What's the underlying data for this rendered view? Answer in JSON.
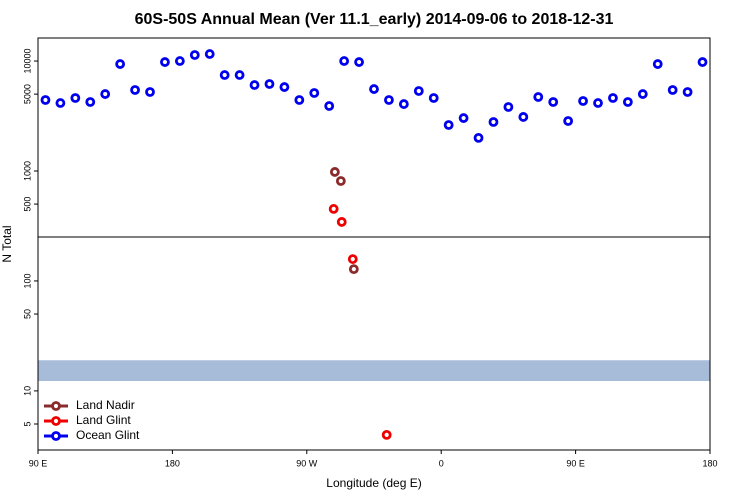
{
  "chart_data": {
    "type": "scatter",
    "title": "60S-50S Annual Mean (Ver 11.1_early)   2014-09-06 to 2018-12-31",
    "xlabel": "Longitude (deg E)",
    "ylabel": "N Total",
    "xlim": [
      90,
      540
    ],
    "ylim": [
      2.9,
      16200
    ],
    "log_y": true,
    "xticks": [
      {
        "value": 90,
        "label": "90 E"
      },
      {
        "value": 180,
        "label": "180"
      },
      {
        "value": 270,
        "label": "90 W"
      },
      {
        "value": 360,
        "label": "0"
      },
      {
        "value": 450,
        "label": "90 E"
      },
      {
        "value": 540,
        "label": "180"
      }
    ],
    "yticks": [
      5,
      10,
      50,
      100,
      500,
      1000,
      5000,
      10000
    ],
    "hline": 251,
    "bands": [
      {
        "range": [
          12.3,
          19
        ],
        "color": "#a7bcd9"
      }
    ],
    "legend": "bottom-left",
    "series": [
      {
        "name": "Land Nadir",
        "color": "#8b2a2a",
        "x": [
          288.8,
          292.8,
          301.5
        ],
        "values": [
          980,
          811,
          128
        ]
      },
      {
        "name": "Land Glint",
        "color": "#ee0000",
        "x": [
          288,
          293.4,
          300.8,
          323.5
        ],
        "values": [
          452,
          344,
          158,
          3.98
        ]
      },
      {
        "name": "Ocean Glint",
        "color": "#0000ee",
        "x": [
          95,
          105,
          115,
          125,
          135,
          145,
          155,
          165,
          175,
          185,
          195,
          205,
          215,
          225,
          235,
          245,
          255,
          265,
          275,
          285,
          295,
          305,
          315,
          325,
          335,
          345,
          355,
          365,
          375,
          385,
          395,
          405,
          415,
          425,
          435,
          445,
          455,
          465,
          475,
          485,
          495,
          505,
          515,
          525,
          535
        ],
        "values": [
          4420,
          4150,
          4610,
          4240,
          5010,
          9390,
          5450,
          5230,
          9790,
          10000,
          11350,
          11580,
          7460,
          7460,
          6050,
          6180,
          5800,
          4420,
          5120,
          3900,
          10000,
          9790,
          5560,
          4420,
          4060,
          5340,
          4610,
          2620,
          3030,
          2000,
          2790,
          3820,
          3100,
          4710,
          4240,
          2850,
          4330,
          4150,
          4610,
          4240,
          5010,
          9390,
          5450,
          5230,
          9790
        ]
      }
    ]
  }
}
